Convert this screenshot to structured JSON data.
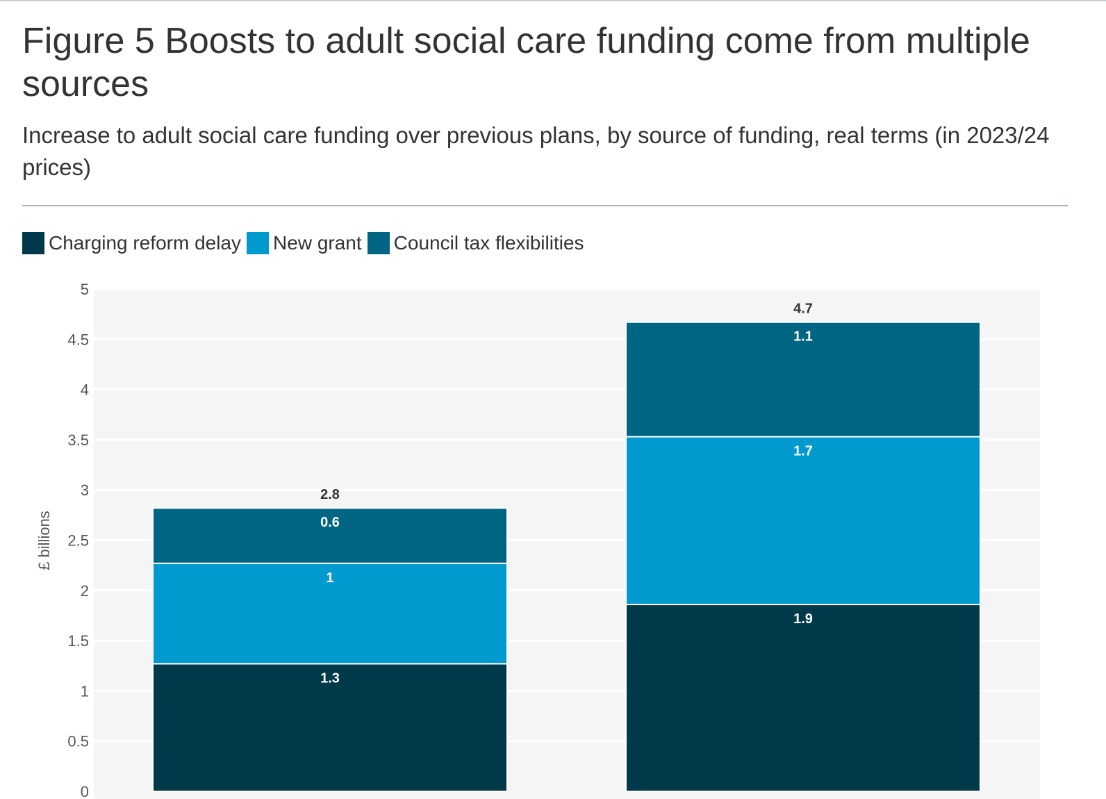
{
  "title": "Figure 5 Boosts to adult social care funding come from multiple sources",
  "subtitle": "Increase to adult social care funding over previous plans, by source of funding, real terms (in 2023/24 prices)",
  "colors": {
    "charging_reform_delay": "#003a4a",
    "new_grant": "#009ace",
    "council_tax_flexibilities": "#006483",
    "plot_background": "#f5f5f5",
    "gridline": "#ffffff"
  },
  "chart_data": {
    "type": "bar",
    "stacked": true,
    "categories": [
      "",
      ""
    ],
    "series": [
      {
        "name": "Charging reform delay",
        "color": "#003a4a",
        "values": [
          1.27,
          1.86
        ],
        "labels": [
          "1.3",
          "1.9"
        ]
      },
      {
        "name": "New grant",
        "color": "#009ace",
        "values": [
          1.0,
          1.67
        ],
        "labels": [
          "1",
          "1.7"
        ]
      },
      {
        "name": "Council tax flexibilities",
        "color": "#006483",
        "values": [
          0.55,
          1.14
        ],
        "labels": [
          "0.6",
          "1.1"
        ]
      }
    ],
    "totals": [
      "2.8",
      "4.7"
    ],
    "ylabel": "£ billions",
    "xlabel": "",
    "ylim": [
      0,
      5
    ],
    "yticks": [
      0,
      0.5,
      1,
      1.5,
      2,
      2.5,
      3,
      3.5,
      4,
      4.5,
      5
    ],
    "ytick_labels": [
      "0",
      "0.5",
      "1",
      "1.5",
      "2",
      "2.5",
      "3",
      "3.5",
      "4",
      "4.5",
      "5"
    ],
    "grid": true,
    "legend_position": "top-left"
  }
}
